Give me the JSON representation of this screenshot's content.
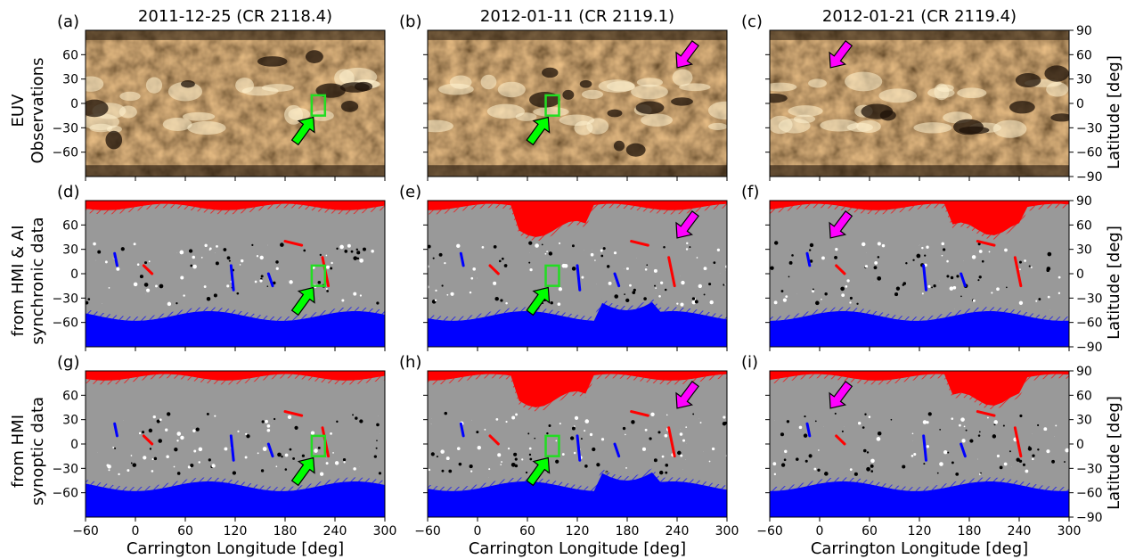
{
  "chart_data": {
    "type": "heatmap",
    "columns": [
      {
        "title": "2011-12-25 (CR 2118.4)"
      },
      {
        "title": "2012-01-11 (CR 2119.1)"
      },
      {
        "title": "2012-01-21 (CR 2119.4)"
      }
    ],
    "rows": [
      {
        "label_lines": [
          "EUV",
          "Observations"
        ],
        "map": "euv"
      },
      {
        "label_lines": [
          "from HMI & AI",
          "synchronic data"
        ],
        "map": "magnetogram"
      },
      {
        "label_lines": [
          "from HMI",
          "synoptic data"
        ],
        "map": "magnetogram"
      }
    ],
    "panel_labels": [
      "(a)",
      "(b)",
      "(c)",
      "(d)",
      "(e)",
      "(f)",
      "(g)",
      "(h)",
      "(i)"
    ],
    "xlabel": "Carrington Longitude [deg]",
    "ylabel": "Latitude [deg]",
    "xlim": [
      -60,
      300
    ],
    "ylim": [
      -90,
      90
    ],
    "x_ticks": [
      -60,
      0,
      60,
      120,
      180,
      240,
      300
    ],
    "y_ticks_left": [
      -60,
      -30,
      0,
      30,
      60
    ],
    "y_ticks_right": [
      -90,
      -60,
      -30,
      0,
      30,
      60,
      90
    ],
    "colors": {
      "positive_polarity": "#ff0000",
      "negative_polarity": "#0000ff",
      "magnetogram_background": "#999999",
      "euv_base": "#a86f30",
      "highlight_box": "#22dd22",
      "green_arrow": "#00ff00",
      "magenta_arrow": "#ff00ff"
    },
    "highlight_boxes": [
      {
        "panel": 0,
        "lon": [
          212,
          228
        ],
        "lat": [
          -15,
          10
        ]
      },
      {
        "panel": 1,
        "lon": [
          82,
          98
        ],
        "lat": [
          -15,
          10
        ]
      },
      {
        "panel": 3,
        "lon": [
          212,
          228
        ],
        "lat": [
          -15,
          10
        ]
      },
      {
        "panel": 4,
        "lon": [
          82,
          98
        ],
        "lat": [
          -15,
          10
        ]
      },
      {
        "panel": 6,
        "lon": [
          212,
          228
        ],
        "lat": [
          -15,
          10
        ]
      },
      {
        "panel": 7,
        "lon": [
          82,
          98
        ],
        "lat": [
          -15,
          10
        ]
      }
    ],
    "arrows": [
      {
        "panel": 0,
        "color": "green",
        "tip": [
          214,
          -17
        ],
        "tail": [
          192,
          -48
        ]
      },
      {
        "panel": 1,
        "color": "green",
        "tip": [
          85,
          -17
        ],
        "tail": [
          63,
          -48
        ]
      },
      {
        "panel": 1,
        "color": "magenta",
        "tip": [
          240,
          44
        ],
        "tail": [
          262,
          74
        ]
      },
      {
        "panel": 2,
        "color": "magenta",
        "tip": [
          13,
          44
        ],
        "tail": [
          35,
          74
        ]
      },
      {
        "panel": 3,
        "color": "green",
        "tip": [
          214,
          -17
        ],
        "tail": [
          192,
          -48
        ]
      },
      {
        "panel": 4,
        "color": "green",
        "tip": [
          85,
          -17
        ],
        "tail": [
          63,
          -48
        ]
      },
      {
        "panel": 4,
        "color": "magenta",
        "tip": [
          240,
          44
        ],
        "tail": [
          262,
          74
        ]
      },
      {
        "panel": 5,
        "color": "magenta",
        "tip": [
          13,
          44
        ],
        "tail": [
          35,
          74
        ]
      },
      {
        "panel": 6,
        "color": "green",
        "tip": [
          214,
          -17
        ],
        "tail": [
          192,
          -48
        ]
      },
      {
        "panel": 7,
        "color": "green",
        "tip": [
          85,
          -17
        ],
        "tail": [
          63,
          -48
        ]
      },
      {
        "panel": 7,
        "color": "magenta",
        "tip": [
          240,
          44
        ],
        "tail": [
          262,
          74
        ]
      },
      {
        "panel": 8,
        "color": "magenta",
        "tip": [
          13,
          44
        ],
        "tail": [
          35,
          74
        ]
      }
    ]
  }
}
